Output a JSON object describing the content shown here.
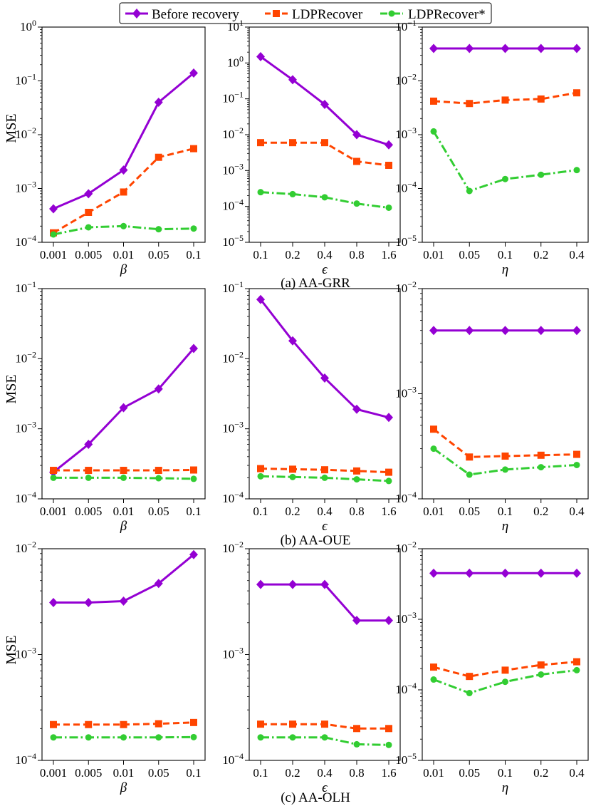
{
  "colors": {
    "before": "#9400D3",
    "ldp": "#FF4500",
    "ldpstar": "#32CD32",
    "axis": "#000000"
  },
  "legend": {
    "entries": [
      "Before recovery",
      "LDPRecover",
      "LDPRecover*"
    ]
  },
  "ylabel": "MSE",
  "captions": [
    "(a) AA-GRR",
    "(b) AA-OUE",
    "(c) AA-OLH"
  ],
  "chart_data": [
    {
      "type": "line",
      "row": 0,
      "col": 0,
      "xlabel": "β",
      "ylabel": "MSE",
      "ylog": [
        -4,
        0
      ],
      "categories": [
        "0.001",
        "0.005",
        "0.01",
        "0.05",
        "0.1"
      ],
      "series": [
        {
          "name": "Before recovery",
          "values": [
            0.00042,
            0.0008,
            0.0022,
            0.04,
            0.14
          ]
        },
        {
          "name": "LDPRecover",
          "values": [
            0.00015,
            0.00036,
            0.00086,
            0.0038,
            0.0055
          ]
        },
        {
          "name": "LDPRecover*",
          "values": [
            0.00014,
            0.00019,
            0.0002,
            0.000175,
            0.00018
          ]
        }
      ]
    },
    {
      "type": "line",
      "row": 0,
      "col": 1,
      "xlabel": "ϵ",
      "ylabel": "",
      "ylog": [
        -5,
        1
      ],
      "categories": [
        "0.1",
        "0.2",
        "0.4",
        "0.8",
        "1.6"
      ],
      "series": [
        {
          "name": "Before recovery",
          "values": [
            1.5,
            0.34,
            0.07,
            0.01,
            0.0052
          ]
        },
        {
          "name": "LDPRecover",
          "values": [
            0.006,
            0.006,
            0.006,
            0.0018,
            0.0014
          ]
        },
        {
          "name": "LDPRecover*",
          "values": [
            0.00025,
            0.00022,
            0.00018,
            0.00012,
            9.2e-05
          ]
        }
      ]
    },
    {
      "type": "line",
      "row": 0,
      "col": 2,
      "xlabel": "η",
      "ylabel": "",
      "ylog": [
        -5,
        -1
      ],
      "categories": [
        "0.01",
        "0.05",
        "0.1",
        "0.2",
        "0.4"
      ],
      "series": [
        {
          "name": "Before recovery",
          "values": [
            0.04,
            0.04,
            0.04,
            0.04,
            0.04
          ]
        },
        {
          "name": "LDPRecover",
          "values": [
            0.0042,
            0.0038,
            0.0044,
            0.0046,
            0.006
          ]
        },
        {
          "name": "LDPRecover*",
          "values": [
            0.00115,
            9e-05,
            0.00015,
            0.00018,
            0.00022
          ]
        }
      ]
    },
    {
      "type": "line",
      "row": 1,
      "col": 0,
      "xlabel": "β",
      "ylabel": "MSE",
      "ylog": [
        -4,
        -1
      ],
      "categories": [
        "0.001",
        "0.005",
        "0.01",
        "0.05",
        "0.1"
      ],
      "series": [
        {
          "name": "Before recovery",
          "values": [
            0.00024,
            0.0006,
            0.002,
            0.0037,
            0.014
          ]
        },
        {
          "name": "LDPRecover",
          "values": [
            0.000255,
            0.000255,
            0.000255,
            0.000255,
            0.000258
          ]
        },
        {
          "name": "LDPRecover*",
          "values": [
            0.0002,
            0.0002,
            0.0002,
            0.000197,
            0.000193
          ]
        }
      ]
    },
    {
      "type": "line",
      "row": 1,
      "col": 1,
      "xlabel": "ϵ",
      "ylabel": "",
      "ylog": [
        -4,
        -1
      ],
      "categories": [
        "0.1",
        "0.2",
        "0.4",
        "0.8",
        "1.6"
      ],
      "series": [
        {
          "name": "Before recovery",
          "values": [
            0.07,
            0.018,
            0.0053,
            0.0019,
            0.00145
          ]
        },
        {
          "name": "LDPRecover",
          "values": [
            0.00027,
            0.000265,
            0.00026,
            0.00025,
            0.00024
          ]
        },
        {
          "name": "LDPRecover*",
          "values": [
            0.00021,
            0.000205,
            0.0002,
            0.00019,
            0.00018
          ]
        }
      ]
    },
    {
      "type": "line",
      "row": 1,
      "col": 2,
      "xlabel": "η",
      "ylabel": "",
      "ylog": [
        -4,
        -2
      ],
      "categories": [
        "0.01",
        "0.05",
        "0.1",
        "0.2",
        "0.4"
      ],
      "series": [
        {
          "name": "Before recovery",
          "values": [
            0.004,
            0.004,
            0.004,
            0.004,
            0.004
          ]
        },
        {
          "name": "LDPRecover",
          "values": [
            0.00046,
            0.00025,
            0.000255,
            0.00026,
            0.000265
          ]
        },
        {
          "name": "LDPRecover*",
          "values": [
            0.0003,
            0.00017,
            0.00019,
            0.0002,
            0.00021
          ]
        }
      ]
    },
    {
      "type": "line",
      "row": 2,
      "col": 0,
      "xlabel": "β",
      "ylabel": "MSE",
      "ylog": [
        -4,
        -2
      ],
      "categories": [
        "0.001",
        "0.005",
        "0.01",
        "0.05",
        "0.1"
      ],
      "series": [
        {
          "name": "Before recovery",
          "values": [
            0.0031,
            0.0031,
            0.0032,
            0.0047,
            0.0088
          ]
        },
        {
          "name": "LDPRecover",
          "values": [
            0.000218,
            0.000218,
            0.000218,
            0.000222,
            0.000228
          ]
        },
        {
          "name": "LDPRecover*",
          "values": [
            0.000165,
            0.000165,
            0.000165,
            0.000165,
            0.000166
          ]
        }
      ]
    },
    {
      "type": "line",
      "row": 2,
      "col": 1,
      "xlabel": "ϵ",
      "ylabel": "",
      "ylog": [
        -4,
        -2
      ],
      "categories": [
        "0.1",
        "0.2",
        "0.4",
        "0.8",
        "1.6"
      ],
      "series": [
        {
          "name": "Before recovery",
          "values": [
            0.0046,
            0.0046,
            0.0046,
            0.0021,
            0.0021
          ]
        },
        {
          "name": "LDPRecover",
          "values": [
            0.00022,
            0.00022,
            0.00022,
            0.0002,
            0.0002
          ]
        },
        {
          "name": "LDPRecover*",
          "values": [
            0.000165,
            0.000165,
            0.000165,
            0.000142,
            0.00014
          ]
        }
      ]
    },
    {
      "type": "line",
      "row": 2,
      "col": 2,
      "xlabel": "η",
      "ylabel": "",
      "ylog": [
        -5,
        -2
      ],
      "categories": [
        "0.01",
        "0.05",
        "0.1",
        "0.2",
        "0.4"
      ],
      "series": [
        {
          "name": "Before recovery",
          "values": [
            0.0045,
            0.0045,
            0.0045,
            0.0045,
            0.0045
          ]
        },
        {
          "name": "LDPRecover",
          "values": [
            0.00021,
            0.000155,
            0.00019,
            0.000225,
            0.00025
          ]
        },
        {
          "name": "LDPRecover*",
          "values": [
            0.00014,
            9e-05,
            0.00013,
            0.000165,
            0.00019
          ]
        }
      ]
    }
  ]
}
